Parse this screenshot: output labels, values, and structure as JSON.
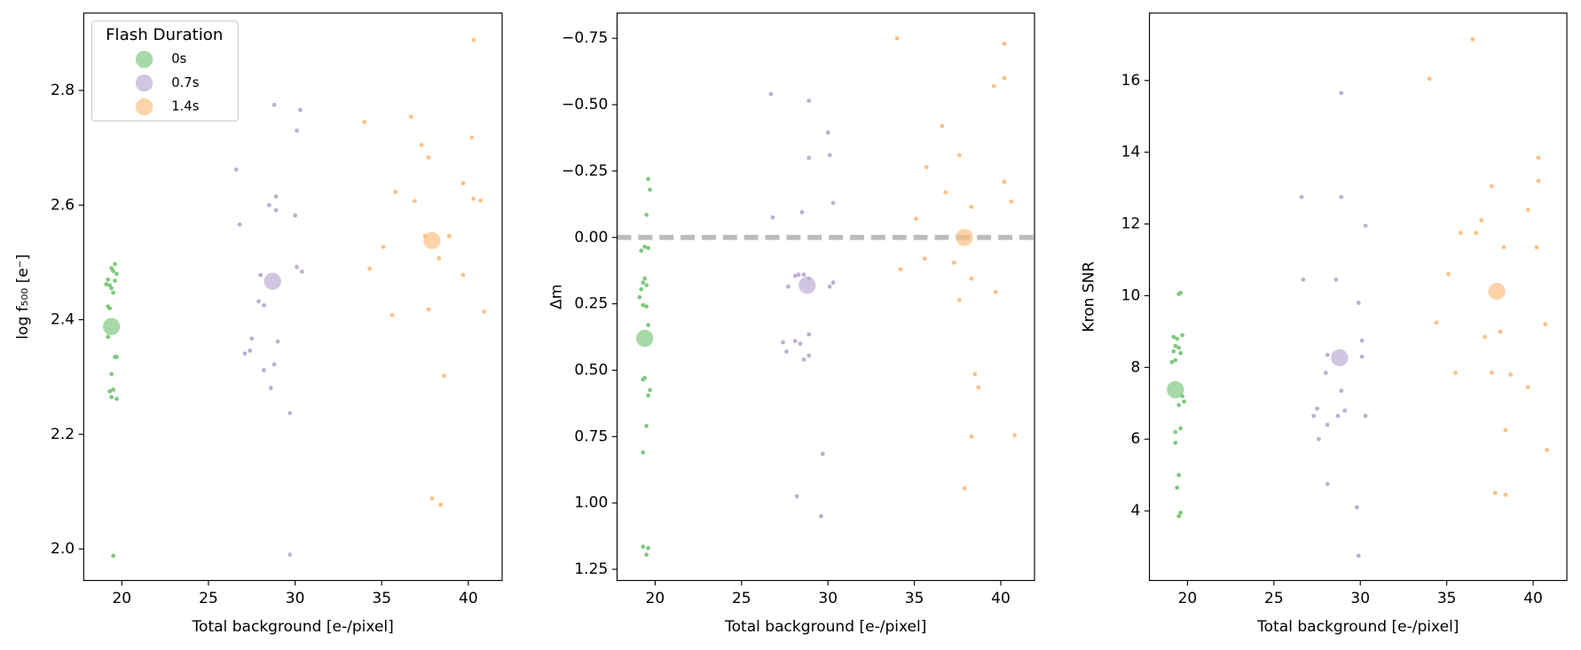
{
  "chart_data": [
    {
      "type": "scatter",
      "xlabel": "Total background [e-/pixel]",
      "ylabel": "log f₅₀₀ [e⁻]",
      "xlim": [
        17.8,
        41.95
      ],
      "xticks": [
        20,
        25,
        30,
        35,
        40
      ],
      "ylim": [
        1.945,
        2.935
      ],
      "yticks": [
        {
          "value": 2.0,
          "label": "2.0"
        },
        2.2,
        2.4,
        2.6,
        2.8
      ],
      "legend": "upper left",
      "legend_title": "Flash Duration",
      "series": [
        {
          "name": "0s",
          "color": "#7fc97f",
          "x": [
            19.6,
            19.4,
            19.5,
            19.7,
            19.2,
            19.6,
            19.1,
            19.3,
            19.4,
            19.5,
            19.3,
            19.2,
            19.2,
            19.6,
            19.7,
            19.4,
            19.3,
            19.5,
            19.4,
            19.7,
            19.5
          ],
          "values": [
            2.497,
            2.49,
            2.485,
            2.48,
            2.47,
            2.468,
            2.462,
            2.46,
            2.455,
            2.447,
            2.42,
            2.423,
            2.37,
            2.335,
            2.335,
            2.305,
            2.275,
            2.278,
            2.265,
            2.262,
            1.988
          ],
          "mean_x": 19.4,
          "mean_y": 2.388
        },
        {
          "name": "0.7s",
          "color": "#beaed4",
          "x": [
            26.6,
            26.8,
            28.8,
            30.3,
            30.1,
            28.9,
            28.5,
            28.9,
            30.0,
            28.0,
            30.1,
            30.4,
            27.9,
            28.2,
            27.5,
            27.4,
            27.1,
            29.0,
            28.2,
            28.8,
            28.6,
            29.7,
            29.7
          ],
          "values": [
            2.662,
            2.566,
            2.775,
            2.766,
            2.73,
            2.615,
            2.6,
            2.591,
            2.582,
            2.478,
            2.492,
            2.484,
            2.432,
            2.425,
            2.367,
            2.346,
            2.341,
            2.362,
            2.312,
            2.322,
            2.281,
            2.237,
            1.99
          ],
          "mean_x": 28.7,
          "mean_y": 2.467
        },
        {
          "name": "1.4s",
          "color": "#fdc086",
          "x": [
            34.0,
            36.7,
            37.3,
            37.7,
            40.3,
            40.2,
            39.7,
            40.3,
            40.7,
            35.8,
            36.9,
            35.1,
            34.3,
            37.5,
            38.9,
            38.3,
            39.7,
            35.6,
            37.7,
            40.9,
            38.6,
            37.9,
            38.4
          ],
          "values": [
            2.745,
            2.754,
            2.705,
            2.683,
            2.888,
            2.718,
            2.638,
            2.611,
            2.608,
            2.623,
            2.607,
            2.527,
            2.489,
            2.546,
            2.546,
            2.507,
            2.478,
            2.408,
            2.418,
            2.414,
            2.302,
            2.088,
            2.077
          ],
          "mean_x": 37.9,
          "mean_y": 2.538
        }
      ]
    },
    {
      "type": "scatter",
      "xlabel": "Total background [e-/pixel]",
      "ylabel": "Δm",
      "xlim": [
        17.8,
        41.95
      ],
      "xticks": [
        20,
        25,
        30,
        35,
        40
      ],
      "ylim": [
        1.292,
        -0.845
      ],
      "yticks": [
        {
          "value": -0.75,
          "label": "−0.75"
        },
        {
          "value": -0.5,
          "label": "−0.50"
        },
        {
          "value": -0.25,
          "label": "−0.25"
        },
        {
          "value": 0,
          "label": "0.00"
        },
        {
          "value": 0.25,
          "label": "0.25"
        },
        {
          "value": 0.5,
          "label": "0.50"
        },
        {
          "value": 0.75,
          "label": "0.75"
        },
        {
          "value": 1.0,
          "label": "1.00"
        },
        {
          "value": 1.25,
          "label": "1.25"
        }
      ],
      "hline": 0,
      "series": [
        {
          "name": "0s",
          "color": "#7fc97f",
          "x": [
            19.6,
            19.7,
            19.5,
            19.4,
            19.6,
            19.2,
            19.4,
            19.3,
            19.5,
            19.2,
            19.1,
            19.3,
            19.5,
            19.6,
            19.3,
            19.4,
            19.7,
            19.6,
            19.5,
            19.3,
            19.3,
            19.6,
            19.5
          ],
          "values": [
            -0.22,
            -0.18,
            -0.085,
            0.035,
            0.04,
            0.05,
            0.155,
            0.17,
            0.18,
            0.195,
            0.225,
            0.255,
            0.26,
            0.33,
            0.535,
            0.53,
            0.575,
            0.595,
            0.71,
            0.81,
            1.165,
            1.17,
            1.195
          ],
          "mean_x": 19.4,
          "mean_y": 0.38
        },
        {
          "name": "0.7s",
          "color": "#beaed4",
          "x": [
            26.7,
            28.9,
            30.0,
            28.9,
            30.1,
            26.8,
            28.5,
            30.3,
            28.1,
            28.3,
            28.6,
            28.9,
            27.7,
            30.3,
            30.1,
            28.9,
            28.1,
            27.4,
            28.4,
            27.6,
            28.9,
            28.6,
            29.7,
            28.2,
            29.6
          ],
          "values": [
            -0.54,
            -0.515,
            -0.395,
            -0.3,
            -0.31,
            -0.075,
            -0.095,
            -0.13,
            0.145,
            0.14,
            0.14,
            0.155,
            0.185,
            0.17,
            0.185,
            0.365,
            0.39,
            0.395,
            0.4,
            0.43,
            0.445,
            0.46,
            0.815,
            0.975,
            1.05
          ],
          "mean_x": 28.8,
          "mean_y": 0.18
        },
        {
          "name": "1.4s",
          "color": "#fdc086",
          "x": [
            34.0,
            40.2,
            40.2,
            39.6,
            36.6,
            37.6,
            35.7,
            36.8,
            40.2,
            40.6,
            38.3,
            35.1,
            34.2,
            35.6,
            37.3,
            38.3,
            39.7,
            37.6,
            38.5,
            38.7,
            38.3,
            40.8,
            37.9
          ],
          "values": [
            -0.75,
            -0.73,
            -0.6,
            -0.57,
            -0.42,
            -0.31,
            -0.265,
            -0.17,
            -0.21,
            -0.135,
            -0.115,
            -0.07,
            0.12,
            0.08,
            0.095,
            0.155,
            0.205,
            0.235,
            0.515,
            0.565,
            0.75,
            0.745,
            0.945
          ],
          "mean_x": 37.9,
          "mean_y": 0.0
        }
      ]
    },
    {
      "type": "scatter",
      "xlabel": "Total background [e-/pixel]",
      "ylabel": "Kron SNR",
      "xlim": [
        17.8,
        41.95
      ],
      "xticks": [
        20,
        25,
        30,
        35,
        40
      ],
      "ylim": [
        2.06,
        17.88
      ],
      "yticks": [
        4,
        6,
        8,
        10,
        12,
        14,
        16
      ],
      "series": [
        {
          "name": "0s",
          "color": "#7fc97f",
          "x": [
            19.6,
            19.5,
            19.2,
            19.7,
            19.4,
            19.3,
            19.5,
            19.2,
            19.6,
            19.3,
            19.1,
            19.7,
            19.8,
            19.5,
            19.6,
            19.3,
            19.3,
            19.5,
            19.4,
            19.6,
            19.5
          ],
          "values": [
            10.08,
            10.05,
            8.85,
            8.9,
            8.8,
            8.6,
            8.55,
            8.45,
            8.4,
            8.2,
            8.15,
            7.2,
            7.05,
            6.95,
            6.3,
            6.2,
            5.9,
            5.0,
            4.65,
            3.95,
            3.85
          ],
          "mean_x": 19.3,
          "mean_y": 7.38
        },
        {
          "name": "0.7s",
          "color": "#beaed4",
          "x": [
            28.9,
            26.6,
            28.9,
            30.3,
            26.7,
            28.6,
            29.9,
            30.1,
            28.1,
            30.1,
            28.0,
            28.9,
            27.5,
            29.1,
            27.3,
            28.7,
            30.3,
            28.1,
            27.6,
            28.1,
            29.8,
            29.9
          ],
          "values": [
            15.65,
            12.75,
            12.75,
            11.95,
            10.45,
            10.45,
            9.8,
            8.75,
            8.35,
            8.3,
            7.85,
            7.35,
            6.85,
            6.8,
            6.65,
            6.65,
            6.65,
            6.4,
            6.0,
            4.75,
            4.1,
            2.75
          ],
          "mean_x": 28.8,
          "mean_y": 8.27
        },
        {
          "name": "1.4s",
          "color": "#fdc086",
          "x": [
            36.5,
            34.0,
            40.3,
            40.3,
            37.6,
            39.7,
            37.0,
            35.8,
            36.7,
            38.3,
            40.2,
            35.1,
            40.7,
            34.4,
            38.1,
            37.2,
            35.5,
            37.6,
            38.7,
            39.7,
            38.4,
            40.8,
            37.8,
            38.4
          ],
          "values": [
            17.15,
            16.05,
            13.85,
            13.2,
            13.05,
            12.4,
            12.1,
            11.75,
            11.75,
            11.35,
            11.35,
            10.6,
            9.2,
            9.25,
            9.0,
            8.85,
            7.85,
            7.85,
            7.8,
            7.45,
            6.25,
            5.7,
            4.5,
            4.45
          ],
          "mean_x": 37.9,
          "mean_y": 10.12
        }
      ]
    }
  ]
}
